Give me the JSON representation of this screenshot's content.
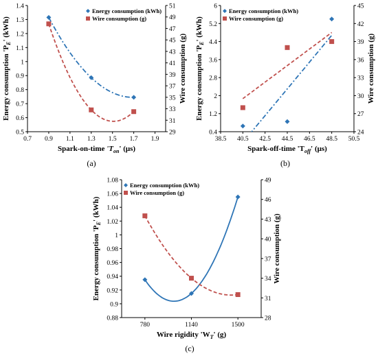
{
  "colors": {
    "energy": "#2E75B6",
    "wire": "#C0504D",
    "axis": "#000000"
  },
  "chart_data": [
    {
      "panel": "(a)",
      "type": "scatter",
      "xlabel_parts": [
        "Spark-on-time ",
        "'T",
        "on",
        "' (μs)"
      ],
      "ylabel_parts": [
        "Energy consumption 'P",
        "E",
        "' (kWh)"
      ],
      "y2label": "Wire consumption (g)",
      "xlim": [
        0.7,
        2.0
      ],
      "ylim": [
        0.5,
        1.4
      ],
      "y2lim": [
        29,
        51
      ],
      "xticks": [
        "0.7",
        "0.9",
        "1.1",
        "1.3",
        "1.5",
        "1.7",
        "1.9"
      ],
      "yticks": [
        "0.5",
        "0.6",
        "0.7",
        "0.8",
        "0.9",
        "1",
        "1.1",
        "1.2",
        "1.3",
        "1.4"
      ],
      "y2ticks": [
        "29",
        "31",
        "33",
        "35",
        "37",
        "39",
        "41",
        "43",
        "45",
        "47",
        "49",
        "51"
      ],
      "legend": "top-right",
      "series": [
        {
          "name": "Energy consumption (kWh)",
          "marker": "diamond",
          "axis": "left",
          "x": [
            0.9,
            1.3,
            1.7
          ],
          "y": [
            1.315,
            0.885,
            0.745
          ],
          "trend": "poly2",
          "trend_style": "dashdot"
        },
        {
          "name": "Wire consumption (g)",
          "marker": "square",
          "axis": "right",
          "x": [
            0.9,
            1.3,
            1.7
          ],
          "y": [
            47.8,
            32.8,
            32.5
          ],
          "trend": "poly2",
          "trend_style": "dashed"
        }
      ]
    },
    {
      "panel": "(b)",
      "type": "scatter",
      "xlabel_parts": [
        "Spark-off-time 'T",
        "off",
        "' (μs)"
      ],
      "ylabel_parts": [
        "Energy consumption 'P",
        "E",
        "' (kWh)"
      ],
      "y2label": "Wire consumption (g)",
      "xlim": [
        38.5,
        50.5
      ],
      "ylim": [
        0.4,
        6.0
      ],
      "y2lim": [
        24,
        45
      ],
      "xticks": [
        "38.5",
        "40.5",
        "42.5",
        "44.5",
        "46.5",
        "48.5",
        "50.5"
      ],
      "yticks": [
        "0.4",
        "1.2",
        "2",
        "2.8",
        "3.6",
        "4.4",
        "5.2",
        "6"
      ],
      "y2ticks": [
        "24",
        "27",
        "30",
        "33",
        "36",
        "39",
        "42",
        "45"
      ],
      "legend": "top-left",
      "series": [
        {
          "name": "Energy consumption (kWh)",
          "marker": "diamond",
          "axis": "left",
          "x": [
            40.5,
            44.5,
            48.5
          ],
          "y": [
            0.65,
            0.85,
            5.4
          ],
          "trend": "linear",
          "trend_style": "dashdot"
        },
        {
          "name": "Wire consumption (g)",
          "marker": "square",
          "axis": "right",
          "x": [
            40.5,
            44.5,
            48.5
          ],
          "y": [
            28.0,
            38.0,
            39.0
          ],
          "trend": "linear",
          "trend_style": "dashed"
        }
      ]
    },
    {
      "panel": "(c)",
      "type": "scatter",
      "xlabel_parts": [
        "Wire rigidity 'W",
        "T",
        "' (g)"
      ],
      "ylabel_parts": [
        "Energy consumption 'P",
        "E",
        "' (kWh)"
      ],
      "y2label": "Wire consumption (g)",
      "xlim": [
        600,
        1680
      ],
      "ylim": [
        0.88,
        1.08
      ],
      "y2lim": [
        28,
        49
      ],
      "xticks": [
        "780",
        "1140",
        "1500"
      ],
      "xtick_values": [
        780,
        1140,
        1500
      ],
      "yticks": [
        "0.88",
        "0.9",
        "0.92",
        "0.94",
        "0.96",
        "0.98",
        "1",
        "1.02",
        "1.04",
        "1.06",
        "1.08"
      ],
      "y2ticks": [
        "28",
        "31",
        "34",
        "37",
        "40",
        "43",
        "46",
        "49"
      ],
      "legend": "top-left",
      "series": [
        {
          "name": "Energy consumption (kWh)",
          "marker": "diamond",
          "axis": "left",
          "x": [
            780,
            1140,
            1500
          ],
          "y": [
            0.935,
            0.915,
            1.055
          ],
          "trend": "poly2",
          "trend_style": "solid"
        },
        {
          "name": "Wire consumption (g)",
          "marker": "square",
          "axis": "right",
          "x": [
            780,
            1140,
            1500
          ],
          "y": [
            43.5,
            34.0,
            31.5
          ],
          "trend": "poly2",
          "trend_style": "dashed"
        }
      ]
    }
  ]
}
